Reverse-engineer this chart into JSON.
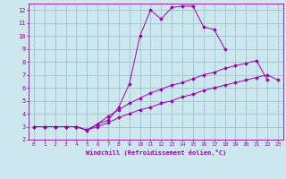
{
  "xlabel": "Windchill (Refroidissement éolien,°C)",
  "xlim": [
    -0.5,
    23.5
  ],
  "ylim": [
    2,
    12.5
  ],
  "xticks": [
    0,
    1,
    2,
    3,
    4,
    5,
    6,
    7,
    8,
    9,
    10,
    11,
    12,
    13,
    14,
    15,
    16,
    17,
    18,
    19,
    20,
    21,
    22,
    23
  ],
  "yticks": [
    2,
    3,
    4,
    5,
    6,
    7,
    8,
    9,
    10,
    11,
    12
  ],
  "background_color": "#cce8ee",
  "line_color": "#9900aa",
  "grid_color": "#99bbcc",
  "lines": [
    {
      "x": [
        0,
        1,
        2,
        3,
        4,
        5,
        6,
        7,
        8,
        9,
        10,
        11,
        12,
        13,
        14,
        15,
        16,
        17,
        18
      ],
      "y": [
        3.0,
        3.0,
        3.0,
        3.0,
        3.0,
        2.7,
        3.2,
        3.5,
        4.5,
        6.3,
        10.0,
        12.0,
        11.3,
        12.2,
        12.3,
        12.3,
        10.7,
        10.5,
        9.0
      ]
    },
    {
      "x": [
        0,
        1,
        2,
        3,
        4,
        5,
        6,
        7,
        8,
        9,
        10,
        11,
        12,
        13,
        14,
        15,
        16,
        17,
        18,
        19,
        20,
        21,
        22
      ],
      "y": [
        3.0,
        3.0,
        3.0,
        3.0,
        3.0,
        2.75,
        3.2,
        3.8,
        4.3,
        4.8,
        5.2,
        5.6,
        5.9,
        6.2,
        6.4,
        6.7,
        7.0,
        7.2,
        7.5,
        7.7,
        7.9,
        8.1,
        6.6
      ]
    },
    {
      "x": [
        0,
        1,
        2,
        3,
        4,
        5,
        6,
        7,
        8,
        9,
        10,
        11,
        12,
        13,
        14,
        15,
        16,
        17,
        18,
        19,
        20,
        21,
        22,
        23
      ],
      "y": [
        3.0,
        3.0,
        3.0,
        3.0,
        3.0,
        2.75,
        3.0,
        3.3,
        3.7,
        4.0,
        4.3,
        4.5,
        4.8,
        5.0,
        5.3,
        5.5,
        5.8,
        6.0,
        6.2,
        6.4,
        6.6,
        6.8,
        7.0,
        6.6
      ]
    }
  ]
}
